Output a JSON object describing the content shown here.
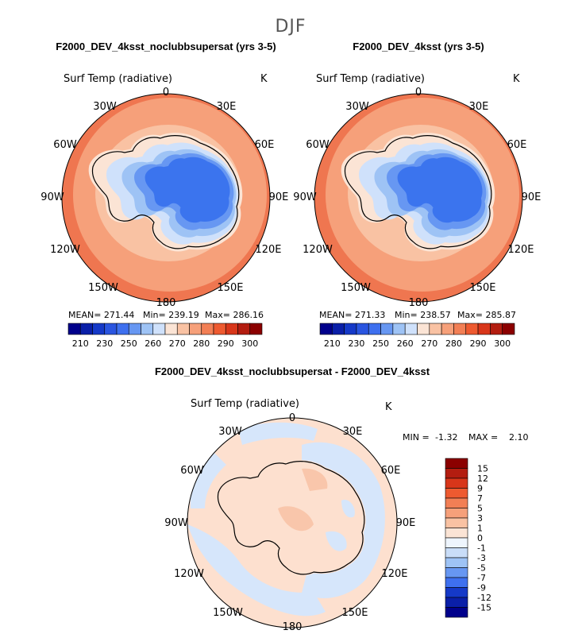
{
  "figure_title": "DJF",
  "colors": {
    "ocean_warm": "#f6a07a",
    "ocean_mid": "#f9c2a3",
    "ocean_outer": "#ef7650",
    "ice_light": "#cfe1fb",
    "ice_mid": "#9ec3f5",
    "ice_deep": "#3b74ee",
    "coast": "#000000",
    "diff_pos": "#fde0cf",
    "diff_neg": "#d6e6fb",
    "diff_pos2": "#f9c6ab"
  },
  "chart_data": [
    {
      "type": "heatmap",
      "projection": "south-polar-stereographic",
      "title": "F2000_DEV_4ksst_noclubbsupersat (yrs 3-5)",
      "variable": "Surf Temp (radiative)",
      "units": "K",
      "stats": {
        "mean": "MEAN= 271.44",
        "min": "Min= 239.19",
        "max": "Max= 286.16"
      },
      "lon_labels": [
        "0",
        "30E",
        "60E",
        "90E",
        "120E",
        "150E",
        "180",
        "150W",
        "120W",
        "90W",
        "60W",
        "30W"
      ],
      "colorbar": {
        "levels": [
          "210",
          "230",
          "250",
          "260",
          "270",
          "280",
          "290",
          "300"
        ],
        "colors": [
          "#00008b",
          "#0a1fa8",
          "#1539c8",
          "#2a55e0",
          "#3e70ef",
          "#6797f2",
          "#9ec3f5",
          "#cfe1fb",
          "#fbe4d5",
          "#f9c2a3",
          "#f6a07a",
          "#f27f55",
          "#ee5a30",
          "#d8361a",
          "#b31d10",
          "#8b0000"
        ]
      }
    },
    {
      "type": "heatmap",
      "projection": "south-polar-stereographic",
      "title": "F2000_DEV_4ksst (yrs 3-5)",
      "variable": "Surf Temp (radiative)",
      "units": "K",
      "stats": {
        "mean": "MEAN= 271.33",
        "min": "Min= 238.57",
        "max": "Max= 285.87"
      },
      "lon_labels": [
        "0",
        "30E",
        "60E",
        "90E",
        "120E",
        "150E",
        "180",
        "150W",
        "120W",
        "90W",
        "60W",
        "30W"
      ],
      "colorbar": {
        "levels": [
          "210",
          "230",
          "250",
          "260",
          "270",
          "280",
          "290",
          "300"
        ],
        "colors": [
          "#00008b",
          "#0a1fa8",
          "#1539c8",
          "#2a55e0",
          "#3e70ef",
          "#6797f2",
          "#9ec3f5",
          "#cfe1fb",
          "#fbe4d5",
          "#f9c2a3",
          "#f6a07a",
          "#f27f55",
          "#ee5a30",
          "#d8361a",
          "#b31d10",
          "#8b0000"
        ]
      }
    },
    {
      "type": "heatmap",
      "projection": "south-polar-stereographic",
      "title": "F2000_DEV_4ksst_noclubbsupersat - F2000_DEV_4ksst",
      "variable": "Surf Temp (radiative)",
      "units": "K",
      "stats": {
        "min": "MIN =",
        "min_value": "-1.32",
        "max": "MAX =",
        "max_value": "2.10"
      },
      "lon_labels": [
        "0",
        "30E",
        "60E",
        "90E",
        "120E",
        "150E",
        "180",
        "150W",
        "120W",
        "90W",
        "60W",
        "30W"
      ],
      "colorbar": {
        "levels": [
          "15",
          "12",
          "9",
          "7",
          "5",
          "3",
          "1",
          "0",
          "-1",
          "-3",
          "-5",
          "-7",
          "-9",
          "-12",
          "-15"
        ],
        "colors": [
          "#8b0000",
          "#b31d10",
          "#d8361a",
          "#ee5a30",
          "#f27f55",
          "#f6a07a",
          "#f9c2a3",
          "#fbe4d5",
          "#eef5fd",
          "#c9ddf8",
          "#9ec3f5",
          "#6797f2",
          "#3e70ef",
          "#1539c8",
          "#0a1fa8",
          "#00008b"
        ]
      }
    }
  ]
}
